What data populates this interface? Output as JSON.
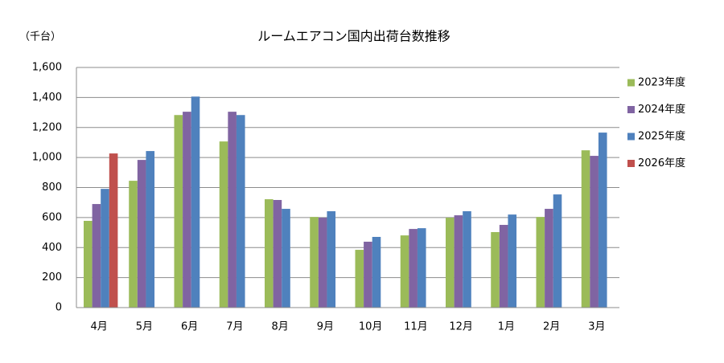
{
  "chart_data": {
    "type": "bar",
    "title": "ルームエアコン国内出荷台数推移",
    "y_unit_label": "（千台）",
    "categories": [
      "4月",
      "5月",
      "6月",
      "7月",
      "8月",
      "9月",
      "10月",
      "11月",
      "12月",
      "1月",
      "2月",
      "3月"
    ],
    "series": [
      {
        "name": "2023年度",
        "color": "#9bbb59",
        "values": [
          578,
          845,
          1283,
          1107,
          722,
          604,
          385,
          481,
          599,
          503,
          604,
          1048
        ]
      },
      {
        "name": "2024年度",
        "color": "#8064a2",
        "values": [
          690,
          984,
          1305,
          1305,
          717,
          599,
          439,
          524,
          615,
          551,
          658,
          1011
        ]
      },
      {
        "name": "2025年度",
        "color": "#4f81bd",
        "values": [
          791,
          1043,
          1406,
          1283,
          658,
          642,
          471,
          529,
          642,
          620,
          754,
          1166
        ]
      },
      {
        "name": "2026年度",
        "color": "#c0504d",
        "values": [
          1027,
          null,
          null,
          null,
          null,
          null,
          null,
          null,
          null,
          null,
          null,
          null
        ]
      }
    ],
    "ylim": [
      0,
      1600
    ],
    "yticks": [
      0,
      200,
      400,
      600,
      800,
      {
        "value": 1000,
        "label": "1,000"
      },
      {
        "value": 1200,
        "label": "1,200"
      },
      {
        "value": 1400,
        "label": "1,400"
      },
      {
        "value": 1600,
        "label": "1,600"
      }
    ],
    "grid": true,
    "legend": "right"
  }
}
